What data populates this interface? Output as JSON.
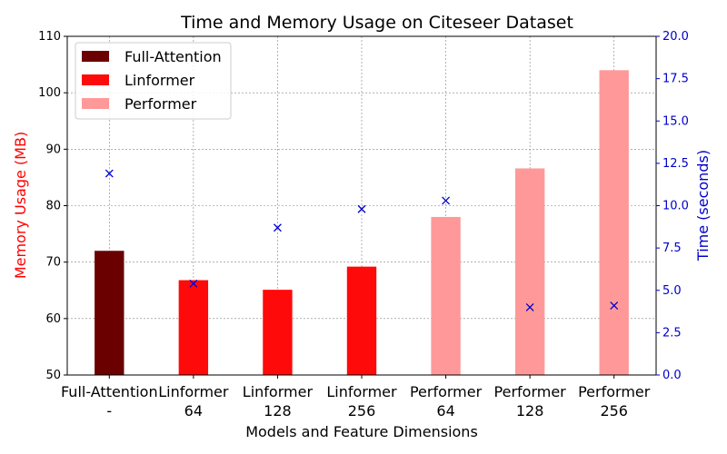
{
  "chart_data": {
    "type": "bar",
    "title": "Time and Memory Usage on Citeseer Dataset",
    "xlabel": "Models and Feature Dimensions",
    "ylabel_left": "Memory Usage (MB)",
    "ylabel_right": "Time (seconds)",
    "ylim_left": [
      50,
      110
    ],
    "ylim_right": [
      0,
      20
    ],
    "yticks_left": [
      "50",
      "60",
      "70",
      "80",
      "90",
      "100",
      "110"
    ],
    "yticks_right": [
      "0.0",
      "2.5",
      "5.0",
      "7.5",
      "10.0",
      "12.5",
      "15.0",
      "17.5",
      "20.0"
    ],
    "grid": true,
    "legend_position": "top-left",
    "categories": [
      {
        "model": "Full-Attention",
        "dim": "-"
      },
      {
        "model": "Linformer",
        "dim": "64"
      },
      {
        "model": "Linformer",
        "dim": "128"
      },
      {
        "model": "Linformer",
        "dim": "256"
      },
      {
        "model": "Performer",
        "dim": "64"
      },
      {
        "model": "Performer",
        "dim": "128"
      },
      {
        "model": "Performer",
        "dim": "256"
      }
    ],
    "memory_mb": [
      72.0,
      66.8,
      65.1,
      69.2,
      78.0,
      86.6,
      104.0
    ],
    "time_seconds": [
      11.9,
      5.4,
      8.7,
      9.8,
      10.3,
      4.0,
      4.1
    ],
    "bar_groups": [
      0,
      1,
      1,
      1,
      2,
      2,
      2
    ],
    "legend": [
      {
        "label": "Full-Attention",
        "color": "#6b0000"
      },
      {
        "label": "Linformer",
        "color": "#ff0a0a"
      },
      {
        "label": "Performer",
        "color": "#ff9999"
      }
    ],
    "colors": {
      "left_axis": "#ff0000",
      "right_axis": "#0000cc",
      "marker": "#0000cc",
      "grid": "#808080"
    }
  }
}
